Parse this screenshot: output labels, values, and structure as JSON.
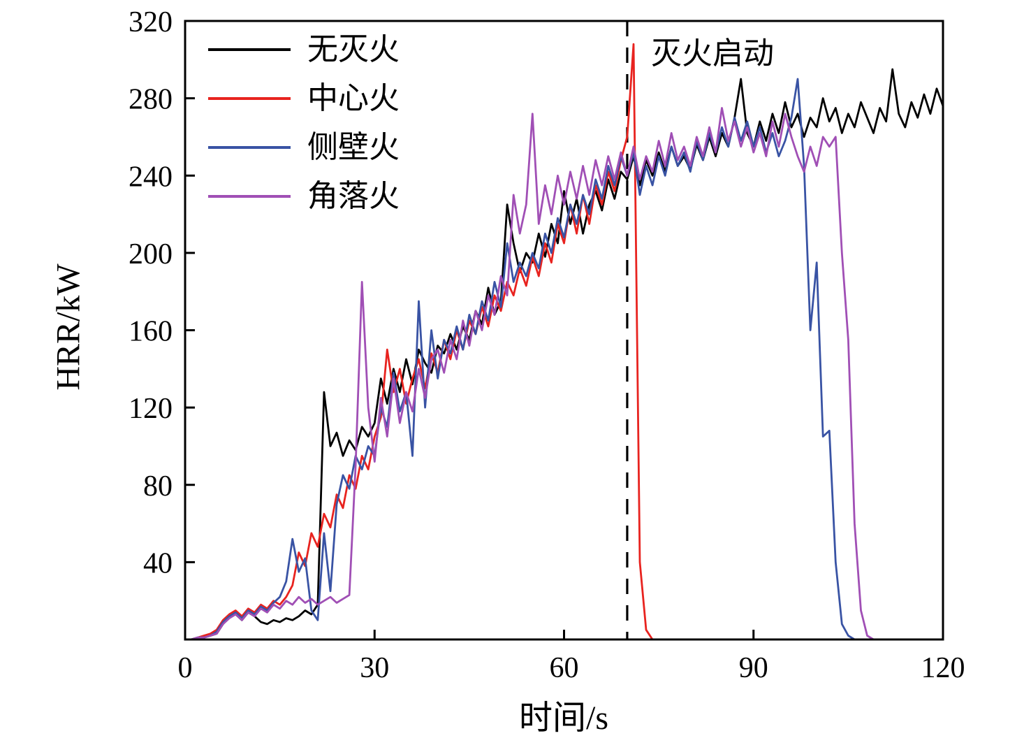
{
  "chart_data": {
    "type": "line",
    "title": "",
    "xlabel": "时间/s",
    "ylabel": "HRR/kW",
    "xlim": [
      0,
      120
    ],
    "ylim": [
      0,
      320
    ],
    "x_ticks": [
      0,
      30,
      60,
      90,
      120
    ],
    "y_ticks": [
      40,
      80,
      120,
      160,
      200,
      240,
      280,
      320
    ],
    "grid": false,
    "legend_position": "top-left",
    "annotation": {
      "text": "灭火启动",
      "type": "dashed-vertical-line",
      "x": 70,
      "color": "#000000"
    },
    "x": {
      "start": 0,
      "step": 1
    },
    "series": [
      {
        "name": "无灭火",
        "color": "#000000",
        "values": [
          0,
          0,
          1,
          1,
          2,
          3,
          8,
          12,
          13,
          10,
          14,
          12,
          9,
          8,
          10,
          9,
          11,
          10,
          12,
          15,
          13,
          18,
          128,
          100,
          107,
          95,
          103,
          98,
          110,
          105,
          112,
          135,
          122,
          140,
          128,
          145,
          132,
          150,
          143,
          138,
          152,
          148,
          158,
          150,
          162,
          155,
          170,
          163,
          182,
          168,
          175,
          225,
          205,
          190,
          200,
          195,
          210,
          198,
          215,
          205,
          232,
          215,
          228,
          210,
          225,
          232,
          222,
          238,
          228,
          242,
          238,
          250,
          235,
          248,
          240,
          252,
          242,
          255,
          245,
          250,
          243,
          256,
          248,
          260,
          250,
          262,
          255,
          270,
          290,
          262,
          255,
          268,
          258,
          272,
          262,
          278,
          265,
          272,
          260,
          270,
          265,
          280,
          268,
          275,
          262,
          272,
          265,
          278,
          270,
          262,
          275,
          268,
          295,
          272,
          265,
          278,
          270,
          282,
          272,
          285,
          276
        ]
      },
      {
        "name": "中心火",
        "color": "#e8231f",
        "values": [
          0,
          0,
          1,
          2,
          3,
          5,
          10,
          13,
          15,
          12,
          16,
          14,
          18,
          16,
          20,
          18,
          22,
          28,
          45,
          38,
          55,
          48,
          65,
          58,
          75,
          68,
          85,
          78,
          95,
          88,
          105,
          115,
          150,
          128,
          140,
          122,
          135,
          145,
          130,
          148,
          138,
          155,
          145,
          160,
          150,
          165,
          158,
          172,
          162,
          178,
          170,
          185,
          178,
          192,
          183,
          198,
          188,
          205,
          195,
          215,
          205,
          225,
          210,
          230,
          215,
          235,
          225,
          242,
          232,
          248,
          260,
          308,
          40,
          5,
          0,
          0,
          0,
          0,
          0,
          0,
          0,
          0,
          0,
          0,
          0,
          0,
          0,
          0,
          0,
          0,
          0,
          0,
          0,
          0,
          0,
          0,
          0,
          0,
          0,
          0,
          0,
          0,
          0,
          0,
          0,
          0,
          0,
          0,
          0,
          0,
          0,
          0,
          0,
          0,
          0,
          0,
          0,
          0,
          0,
          0,
          0
        ]
      },
      {
        "name": "侧壁火",
        "color": "#3953a4",
        "values": [
          0,
          0,
          1,
          1,
          2,
          4,
          9,
          12,
          14,
          11,
          15,
          13,
          17,
          15,
          19,
          22,
          30,
          52,
          35,
          42,
          15,
          10,
          55,
          25,
          70,
          85,
          78,
          95,
          88,
          100,
          95,
          120,
          110,
          138,
          118,
          128,
          95,
          175,
          120,
          160,
          135,
          155,
          148,
          162,
          150,
          168,
          158,
          175,
          165,
          185,
          172,
          205,
          185,
          195,
          188,
          200,
          192,
          210,
          200,
          218,
          208,
          225,
          215,
          230,
          220,
          238,
          228,
          245,
          235,
          250,
          240,
          252,
          230,
          245,
          235,
          250,
          240,
          255,
          245,
          252,
          242,
          258,
          248,
          262,
          252,
          265,
          255,
          270,
          258,
          268,
          255,
          265,
          252,
          262,
          250,
          258,
          270,
          290,
          245,
          160,
          195,
          105,
          108,
          40,
          8,
          2,
          0,
          0,
          0,
          0,
          0,
          0,
          0,
          0,
          0,
          0,
          0,
          0,
          0,
          0,
          0
        ]
      },
      {
        "name": "角落火",
        "color": "#a04fb5",
        "values": [
          0,
          0,
          1,
          1,
          2,
          3,
          8,
          11,
          13,
          10,
          14,
          12,
          16,
          14,
          18,
          16,
          20,
          18,
          22,
          19,
          21,
          18,
          20,
          22,
          19,
          21,
          23,
          90,
          185,
          120,
          92,
          125,
          105,
          135,
          112,
          128,
          118,
          140,
          125,
          145,
          150,
          138,
          155,
          145,
          165,
          152,
          170,
          160,
          178,
          168,
          188,
          178,
          230,
          210,
          225,
          272,
          215,
          235,
          220,
          240,
          225,
          242,
          228,
          245,
          230,
          248,
          235,
          250,
          238,
          252,
          240,
          255,
          238,
          250,
          242,
          258,
          245,
          262,
          248,
          255,
          245,
          260,
          250,
          265,
          252,
          275,
          258,
          268,
          255,
          265,
          252,
          262,
          250,
          268,
          255,
          272,
          260,
          250,
          242,
          255,
          245,
          260,
          255,
          260,
          200,
          155,
          60,
          15,
          2,
          0,
          0,
          0,
          0,
          0,
          0,
          0,
          0,
          0,
          0,
          0,
          0
        ]
      }
    ]
  }
}
